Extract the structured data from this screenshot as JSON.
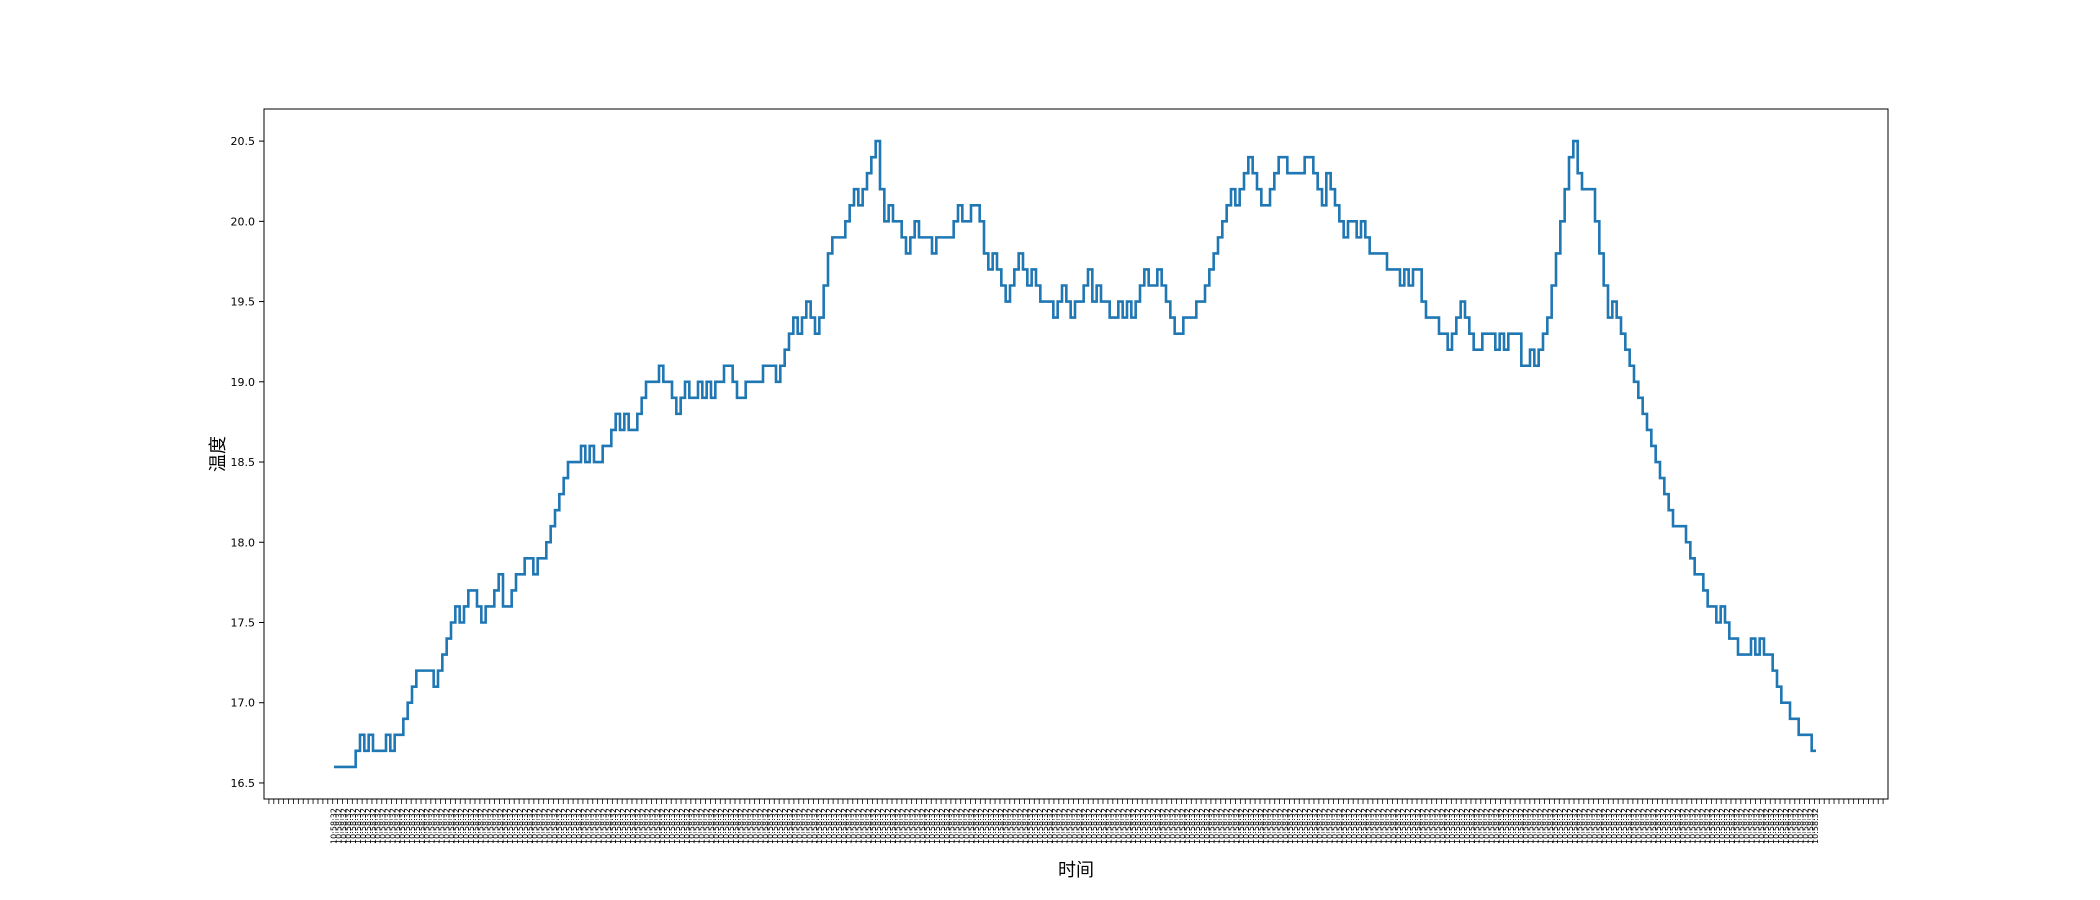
{
  "chart_data": {
    "type": "line",
    "xlabel": "时间",
    "ylabel": "温度",
    "ylim": [
      16.4,
      20.7
    ],
    "yticks": [
      16.5,
      17.0,
      17.5,
      18.0,
      18.5,
      19.0,
      19.5,
      20.0,
      20.5
    ],
    "ytick_labels": [
      "16.5",
      "17.0",
      "17.5",
      "18.0",
      "18.5",
      "19.0",
      "19.5",
      "20.0",
      "20.5"
    ],
    "x_tick_text": "10:58:32",
    "x_tick_count": 330,
    "grid": false,
    "legend": "none",
    "line_color": "#1f77b4",
    "series": [
      {
        "values": [
          16.6,
          16.6,
          16.6,
          16.6,
          16.6,
          16.7,
          16.8,
          16.7,
          16.8,
          16.7,
          16.7,
          16.7,
          16.8,
          16.7,
          16.8,
          16.8,
          16.9,
          17.0,
          17.1,
          17.2,
          17.2,
          17.2,
          17.2,
          17.1,
          17.2,
          17.3,
          17.4,
          17.5,
          17.6,
          17.5,
          17.6,
          17.7,
          17.7,
          17.6,
          17.5,
          17.6,
          17.6,
          17.7,
          17.8,
          17.6,
          17.6,
          17.7,
          17.8,
          17.8,
          17.9,
          17.9,
          17.8,
          17.9,
          17.9,
          18.0,
          18.1,
          18.2,
          18.3,
          18.4,
          18.5,
          18.5,
          18.5,
          18.6,
          18.5,
          18.6,
          18.5,
          18.5,
          18.6,
          18.6,
          18.7,
          18.8,
          18.7,
          18.8,
          18.7,
          18.7,
          18.8,
          18.9,
          19.0,
          19.0,
          19.0,
          19.1,
          19.0,
          19.0,
          18.9,
          18.8,
          18.9,
          19.0,
          18.9,
          18.9,
          19.0,
          18.9,
          19.0,
          18.9,
          19.0,
          19.0,
          19.1,
          19.1,
          19.0,
          18.9,
          18.9,
          19.0,
          19.0,
          19.0,
          19.0,
          19.1,
          19.1,
          19.1,
          19.0,
          19.1,
          19.2,
          19.3,
          19.4,
          19.3,
          19.4,
          19.5,
          19.4,
          19.3,
          19.4,
          19.6,
          19.8,
          19.9,
          19.9,
          19.9,
          20.0,
          20.1,
          20.2,
          20.1,
          20.2,
          20.3,
          20.4,
          20.5,
          20.2,
          20.0,
          20.1,
          20.0,
          20.0,
          19.9,
          19.8,
          19.9,
          20.0,
          19.9,
          19.9,
          19.9,
          19.8,
          19.9,
          19.9,
          19.9,
          19.9,
          20.0,
          20.1,
          20.0,
          20.0,
          20.1,
          20.1,
          20.0,
          19.8,
          19.7,
          19.8,
          19.7,
          19.6,
          19.5,
          19.6,
          19.7,
          19.8,
          19.7,
          19.6,
          19.7,
          19.6,
          19.5,
          19.5,
          19.5,
          19.4,
          19.5,
          19.6,
          19.5,
          19.4,
          19.5,
          19.5,
          19.6,
          19.7,
          19.5,
          19.6,
          19.5,
          19.5,
          19.4,
          19.4,
          19.5,
          19.4,
          19.5,
          19.4,
          19.5,
          19.6,
          19.7,
          19.6,
          19.6,
          19.7,
          19.6,
          19.5,
          19.4,
          19.3,
          19.3,
          19.4,
          19.4,
          19.4,
          19.5,
          19.5,
          19.6,
          19.7,
          19.8,
          19.9,
          20.0,
          20.1,
          20.2,
          20.1,
          20.2,
          20.3,
          20.4,
          20.3,
          20.2,
          20.1,
          20.1,
          20.2,
          20.3,
          20.4,
          20.4,
          20.3,
          20.3,
          20.3,
          20.3,
          20.4,
          20.4,
          20.3,
          20.2,
          20.1,
          20.3,
          20.2,
          20.1,
          20.0,
          19.9,
          20.0,
          20.0,
          19.9,
          20.0,
          19.9,
          19.8,
          19.8,
          19.8,
          19.8,
          19.7,
          19.7,
          19.7,
          19.6,
          19.7,
          19.6,
          19.7,
          19.7,
          19.5,
          19.4,
          19.4,
          19.4,
          19.3,
          19.3,
          19.2,
          19.3,
          19.4,
          19.5,
          19.4,
          19.3,
          19.2,
          19.2,
          19.3,
          19.3,
          19.3,
          19.2,
          19.3,
          19.2,
          19.3,
          19.3,
          19.3,
          19.1,
          19.1,
          19.2,
          19.1,
          19.2,
          19.3,
          19.4,
          19.6,
          19.8,
          20.0,
          20.2,
          20.4,
          20.5,
          20.3,
          20.2,
          20.2,
          20.2,
          20.0,
          19.8,
          19.6,
          19.4,
          19.5,
          19.4,
          19.3,
          19.2,
          19.1,
          19.0,
          18.9,
          18.8,
          18.7,
          18.6,
          18.5,
          18.4,
          18.3,
          18.2,
          18.1,
          18.1,
          18.1,
          18.0,
          17.9,
          17.8,
          17.8,
          17.7,
          17.6,
          17.6,
          17.5,
          17.6,
          17.5,
          17.4,
          17.4,
          17.3,
          17.3,
          17.3,
          17.4,
          17.3,
          17.4,
          17.3,
          17.3,
          17.2,
          17.1,
          17.0,
          17.0,
          16.9,
          16.9,
          16.8,
          16.8,
          16.8,
          16.7,
          16.7
        ]
      }
    ]
  }
}
